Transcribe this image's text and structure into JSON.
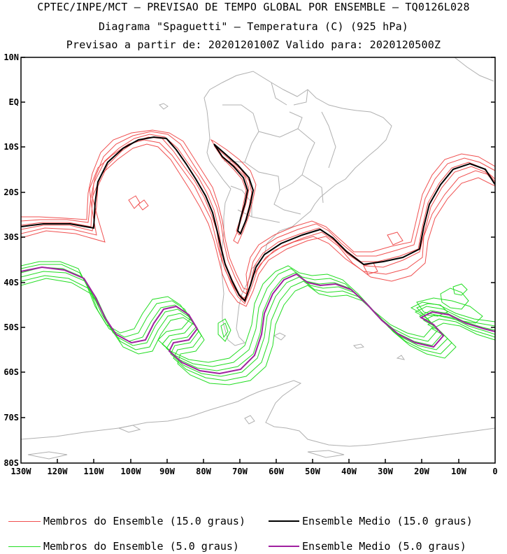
{
  "title": {
    "line1": "CPTEC/INPE/MCT — PREVISAO DE TEMPO GLOBAL POR ENSEMBLE — TQ0126L028",
    "line2": "Diagrama \"Spaguetti\" — Temperatura (C) (925 hPa)",
    "line3": "Previsao a partir de: 2020120100Z  Valido para: 2020120500Z"
  },
  "axes": {
    "lat_labels": [
      "10N",
      "EQ",
      "10S",
      "20S",
      "30S",
      "40S",
      "50S",
      "60S",
      "70S",
      "80S"
    ],
    "lon_labels": [
      "130W",
      "120W",
      "110W",
      "100W",
      "90W",
      "80W",
      "70W",
      "60W",
      "50W",
      "40W",
      "30W",
      "20W",
      "10W",
      "0"
    ]
  },
  "legend": [
    {
      "label": "Membros do Ensemble (15.0 graus)",
      "color": "#f05050"
    },
    {
      "label": "Ensemble Medio (15.0 graus)",
      "color": "#000000"
    },
    {
      "label": "Membros do Ensemble (5.0 graus)",
      "color": "#22dd22"
    },
    {
      "label": "Ensemble Medio (5.0 graus)",
      "color": "#a020a0"
    }
  ],
  "colors": {
    "land": "#b0b0b0",
    "member15": "#f05050",
    "mean15": "#000000",
    "member5": "#22dd22",
    "mean5": "#a020a0"
  }
}
